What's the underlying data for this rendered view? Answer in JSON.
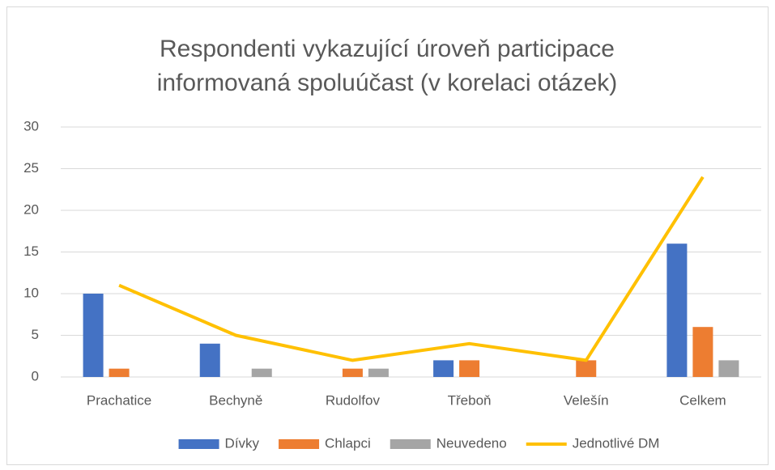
{
  "chart_data": {
    "type": "bar",
    "title": [
      "Respondenti vykazující úroveň participace",
      "informovaná spoluúčast (v korelaci otázek)"
    ],
    "categories": [
      "Prachatice",
      "Bechyně",
      "Rudolfov",
      "Třeboň",
      "Velešín",
      "Celkem"
    ],
    "series": [
      {
        "name": "Dívky",
        "color": "#4472c4",
        "values": [
          10,
          4,
          0,
          2,
          0,
          16
        ]
      },
      {
        "name": "Chlapci",
        "color": "#ed7d31",
        "values": [
          1,
          0,
          1,
          2,
          2,
          6
        ]
      },
      {
        "name": "Neuvedeno",
        "color": "#a5a5a5",
        "values": [
          0,
          1,
          1,
          0,
          0,
          2
        ]
      },
      {
        "name": "Jednotlivé DM",
        "color": "#ffc000",
        "type": "line",
        "values": [
          11,
          5,
          2,
          4,
          2,
          24
        ]
      }
    ],
    "ylim": [
      0,
      30
    ],
    "yticks": [
      0,
      5,
      10,
      15,
      20,
      25,
      30
    ],
    "grid": true,
    "legend": "bottom"
  }
}
